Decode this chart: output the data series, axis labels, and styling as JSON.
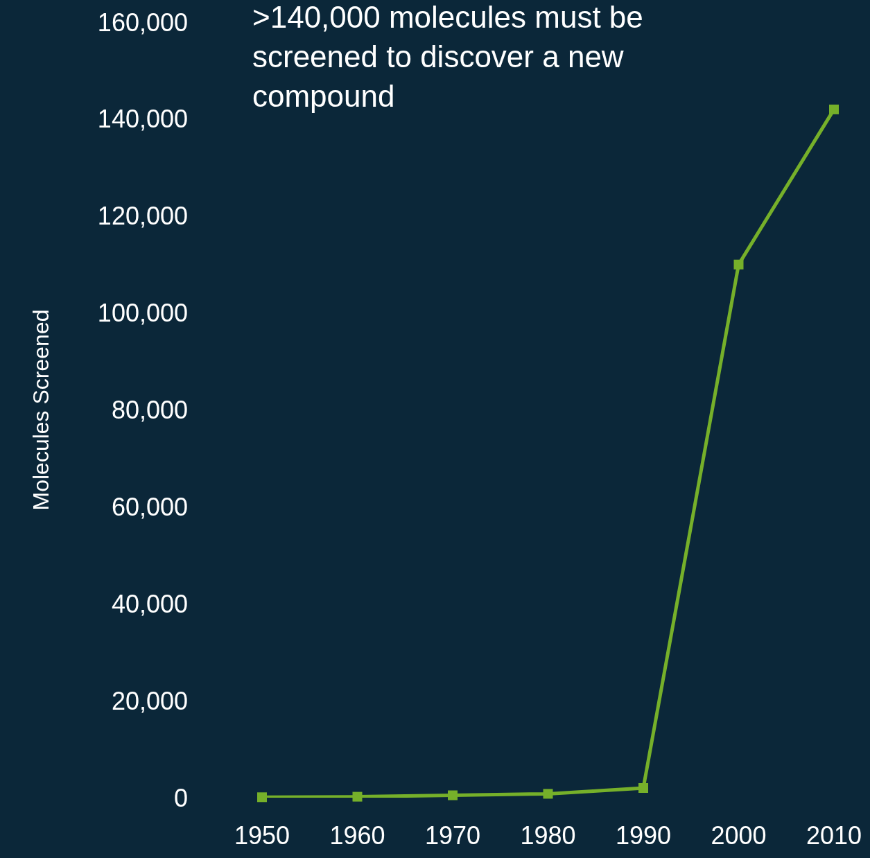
{
  "chart_data": {
    "type": "line",
    "ylabel": "Molecules Screened",
    "annotations": [
      ">140,000 molecules must be screened to discover a new compound"
    ],
    "x": [
      1950,
      1960,
      1970,
      1980,
      1990,
      2000,
      2010
    ],
    "series": [
      {
        "color": "#76b02a",
        "values": [
          100,
          200,
          500,
          800,
          2000,
          110000,
          142000
        ]
      }
    ],
    "xlim": [
      1950,
      2010
    ],
    "xticks": [
      1950,
      1960,
      1970,
      1980,
      1990,
      2000,
      2010
    ],
    "ylim": [
      0,
      160000
    ],
    "yticks": [
      {
        "value": 0,
        "label": "0"
      },
      {
        "value": 20000,
        "label": "20,000"
      },
      {
        "value": 40000,
        "label": "40,000"
      },
      {
        "value": 60000,
        "label": "60,000"
      },
      {
        "value": 80000,
        "label": "80,000"
      },
      {
        "value": 100000,
        "label": "100,000"
      },
      {
        "value": 120000,
        "label": "120,000"
      },
      {
        "value": 140000,
        "label": "140,000"
      },
      {
        "value": 160000,
        "label": "160,000"
      }
    ],
    "grid": false,
    "marker": "square",
    "line_style": "solid"
  }
}
